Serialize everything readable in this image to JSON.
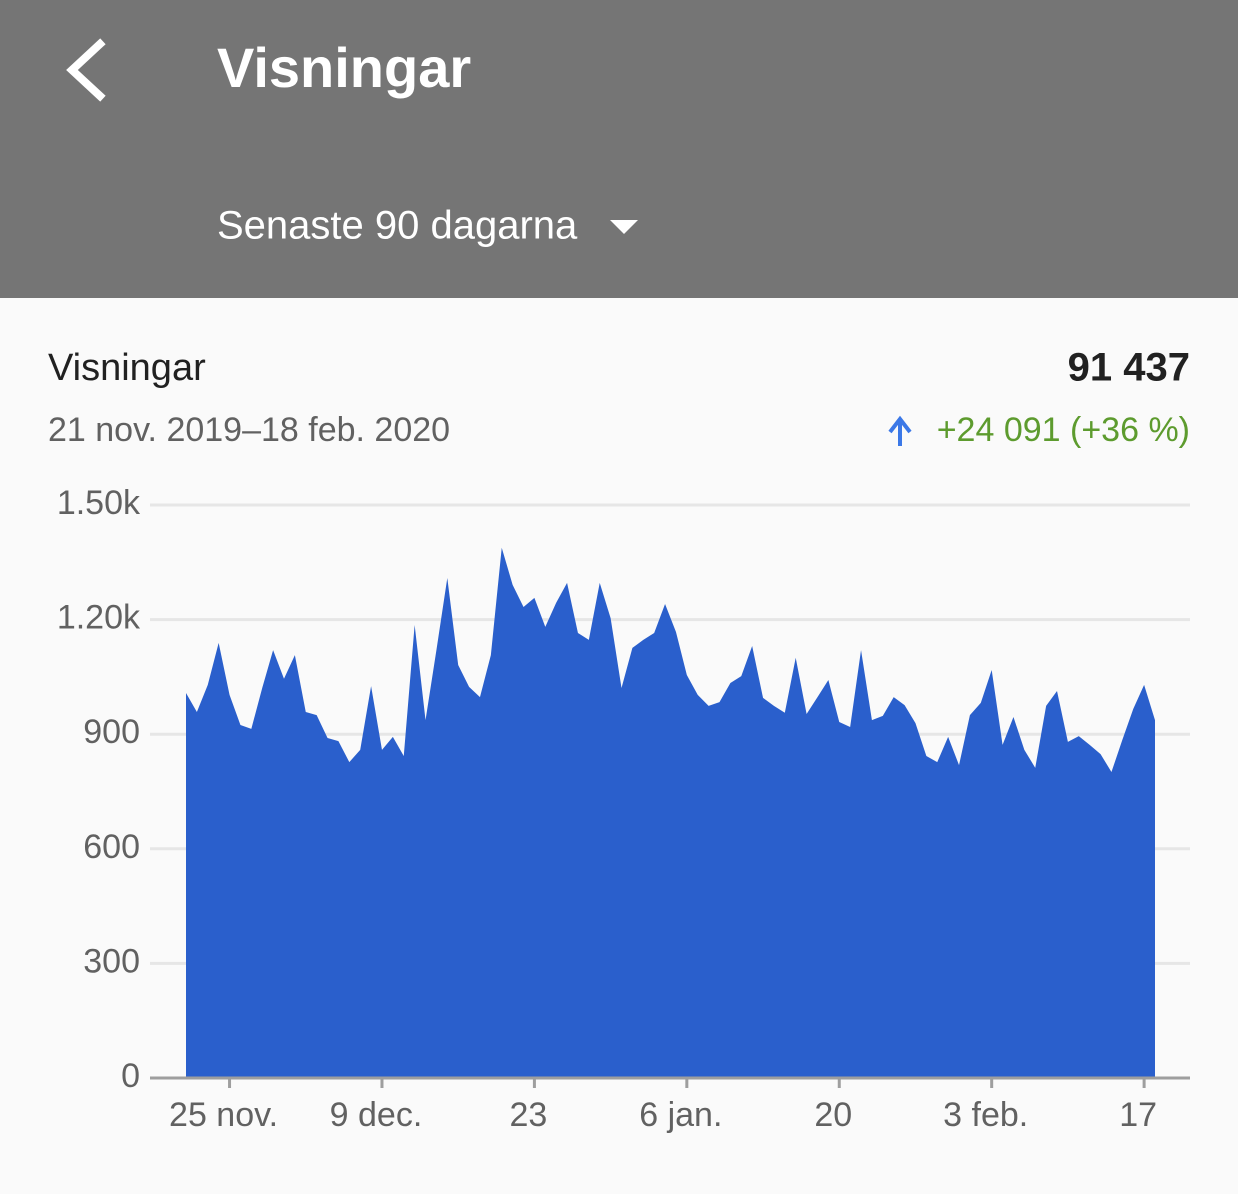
{
  "header": {
    "title": "Visningar",
    "period": "Senaste 90 dagarna"
  },
  "chart_data": {
    "type": "area",
    "title": "Visningar",
    "total": "91 437",
    "date_range": "21 nov. 2019–18 feb. 2020",
    "change": "+24 091 (+36 %)",
    "categories": [
      null,
      null,
      null,
      null,
      "25 nov.",
      null,
      null,
      null,
      null,
      null,
      null,
      null,
      null,
      null,
      null,
      null,
      null,
      null,
      "9 dec.",
      null,
      null,
      null,
      null,
      null,
      null,
      null,
      null,
      null,
      null,
      null,
      null,
      null,
      "23",
      null,
      null,
      null,
      null,
      null,
      null,
      null,
      null,
      null,
      null,
      null,
      null,
      null,
      "6 jan.",
      null,
      null,
      null,
      null,
      null,
      null,
      null,
      null,
      null,
      null,
      null,
      null,
      null,
      "20",
      null,
      null,
      null,
      null,
      null,
      null,
      null,
      null,
      null,
      null,
      null,
      null,
      null,
      "3 feb.",
      null,
      null,
      null,
      null,
      null,
      null,
      null,
      null,
      null,
      null,
      null,
      null,
      null,
      "17",
      null
    ],
    "values": [
      1008,
      958,
      1029,
      1139,
      1003,
      924,
      914,
      1021,
      1120,
      1045,
      1107,
      958,
      950,
      890,
      882,
      827,
      859,
      1026,
      859,
      893,
      843,
      1186,
      937,
      1120,
      1309,
      1081,
      1024,
      997,
      1107,
      1388,
      1291,
      1233,
      1257,
      1181,
      1244,
      1296,
      1165,
      1147,
      1296,
      1204,
      1021,
      1126,
      1147,
      1165,
      1241,
      1168,
      1055,
      1003,
      974,
      984,
      1034,
      1052,
      1131,
      995,
      974,
      956,
      1100,
      953,
      997,
      1042,
      932,
      919,
      1120,
      937,
      948,
      997,
      976,
      929,
      843,
      827,
      893,
      819,
      950,
      982,
      1068,
      872,
      945,
      859,
      812,
      974,
      1013,
      880,
      895,
      872,
      848,
      801,
      885,
      966,
      1029,
      937
    ],
    "color": "#2a5fcc",
    "ylim": [
      0,
      1500
    ],
    "yticks": [
      0,
      300,
      600,
      900,
      {
        "value": 1200,
        "label": "1.20k"
      },
      {
        "value": 1500,
        "label": "1.50k"
      }
    ],
    "grid": true
  }
}
